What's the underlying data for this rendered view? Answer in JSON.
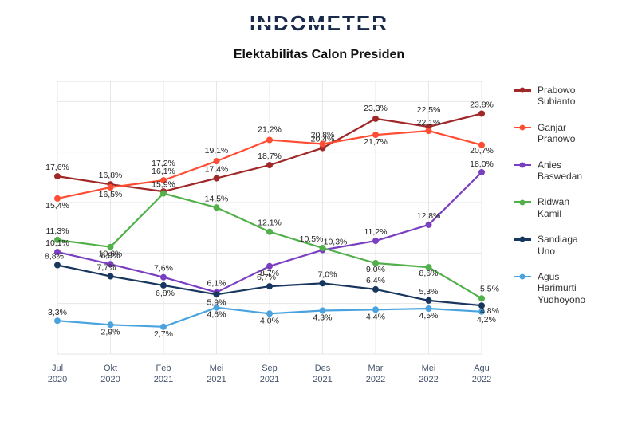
{
  "logo_text": "INDOMETER",
  "title": "Elektabilitas Calon Presiden",
  "title_fontsize": 16,
  "title_fontweight": 700,
  "background_color": "#ffffff",
  "grid_color": "#e6e6e6",
  "logo_color": "#1a2a4a",
  "chart": {
    "type": "line",
    "categories": [
      "Jul\n2020",
      "Okt\n2020",
      "Feb\n2021",
      "Mei\n2021",
      "Sep\n2021",
      "Des\n2021",
      "Mar\n2022",
      "Mei\n2022",
      "Agu\n2022"
    ],
    "xlabel_fontsize": 11,
    "ylim": [
      0,
      27
    ],
    "grid_on": true,
    "line_width": 2.2,
    "marker_radius": 4,
    "label_fontsize": 10.5,
    "legend": {
      "fontsize": 12,
      "position": "right"
    },
    "series": [
      {
        "name": "Prabowo\nSubianto",
        "color": "#a02828",
        "values": [
          17.6,
          16.8,
          16.1,
          17.4,
          18.7,
          20.4,
          23.3,
          22.5,
          23.8
        ],
        "label_dy": [
          -8,
          -8,
          -22,
          -8,
          -8,
          -8,
          -10,
          -18,
          -8
        ]
      },
      {
        "name": "Ganjar\nPranowo",
        "color": "#ff4d33",
        "values": [
          15.4,
          16.5,
          17.2,
          19.1,
          21.2,
          20.8,
          21.7,
          22.1,
          20.7
        ],
        "label_dy": [
          12,
          12,
          -18,
          -10,
          -10,
          -8,
          12,
          -7,
          10
        ]
      },
      {
        "name": "Anies\nBaswedan",
        "color": "#7a3fc0",
        "values": [
          10.1,
          8.9,
          7.6,
          6.1,
          8.7,
          10.3,
          11.2,
          12.8,
          18.0
        ],
        "label_dy": [
          -8,
          -8,
          -8,
          -8,
          12,
          -7,
          -8,
          -8,
          -7
        ],
        "label_dx": [
          0,
          0,
          0,
          0,
          0,
          16,
          0,
          0,
          0
        ]
      },
      {
        "name": "Ridwan\nKamil",
        "color": "#51b04a",
        "values": [
          11.3,
          10.6,
          15.9,
          14.5,
          12.1,
          10.5,
          9.0,
          8.6,
          5.5
        ],
        "label_dy": [
          -8,
          12,
          -8,
          -8,
          -8,
          -8,
          11,
          11,
          -9
        ],
        "label_dx": [
          0,
          0,
          0,
          0,
          0,
          -14,
          0,
          0,
          10
        ]
      },
      {
        "name": "Sandiaga\nUno",
        "color": "#17375e",
        "values": [
          8.8,
          7.7,
          6.8,
          5.9,
          6.7,
          7.0,
          6.4,
          5.3,
          4.8
        ],
        "label_dy": [
          -8,
          -8,
          13,
          13,
          -8,
          -8,
          -8,
          -8,
          10
        ],
        "label_dx": [
          -4,
          -5,
          2,
          0,
          -4,
          6,
          0,
          0,
          10
        ]
      },
      {
        "name": "Agus\nHarimurti\nYudhoyono",
        "color": "#4aa3df",
        "values": [
          3.3,
          2.9,
          2.7,
          4.6,
          4.0,
          4.3,
          4.4,
          4.5,
          4.2
        ],
        "label_dy": [
          -7,
          12,
          12,
          12,
          12,
          12,
          12,
          12,
          13
        ],
        "label_dx": [
          0,
          0,
          0,
          0,
          0,
          0,
          0,
          0,
          6
        ]
      }
    ]
  }
}
